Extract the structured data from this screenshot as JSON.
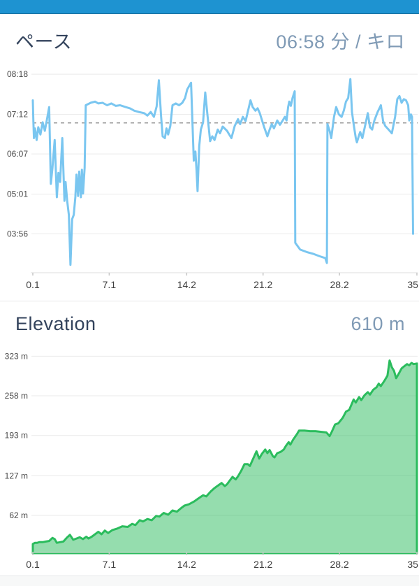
{
  "topbar": {
    "color": "#1E93D1"
  },
  "theme": {
    "title_color": "#33435C",
    "value_color": "#7F9AB5",
    "grid_color": "#EAEAEA",
    "axis_line_color": "#DCDCDC",
    "tick_mark_color": "#C6C6C6",
    "x_label_color": "#3E3E3E",
    "y_label_color": "#4A4A4A"
  },
  "pace_header": {
    "title": "ペース",
    "value": "06:58 分 / キロ"
  },
  "elevation_header": {
    "title": "Elevation",
    "value": "610 m"
  },
  "chart_data": [
    {
      "id": "pace",
      "type": "line",
      "title": "ペース",
      "value_label": "06:58 分 / キロ",
      "line_color": "#7AC6F0",
      "line_width": 3,
      "grid": true,
      "average_line": {
        "seconds": 418,
        "label": "06:58",
        "color": "#9B9B9B",
        "dash": "5,5"
      },
      "x": {
        "domain": [
          0.1,
          35.3
        ],
        "ticks": [
          0.1,
          7.1,
          14.2,
          21.2,
          28.2,
          35.3
        ],
        "tick_labels": [
          "0.1",
          "7.1",
          "14.2",
          "21.2",
          "28.2",
          "35.3"
        ]
      },
      "y": {
        "domain": [
          172,
          505
        ],
        "unit": "min:sec per km",
        "ticks": [
          {
            "label": "08:18",
            "value": 498
          },
          {
            "label": "07:12",
            "value": 432
          },
          {
            "label": "06:07",
            "value": 367
          },
          {
            "label": "05:01",
            "value": 301
          },
          {
            "label": "03:56",
            "value": 236
          }
        ]
      },
      "points": [
        [
          0.1,
          455
        ],
        [
          0.15,
          420
        ],
        [
          0.2,
          393
        ],
        [
          0.3,
          409
        ],
        [
          0.45,
          390
        ],
        [
          0.6,
          411
        ],
        [
          0.8,
          399
        ],
        [
          1.0,
          419
        ],
        [
          1.2,
          405
        ],
        [
          1.4,
          424
        ],
        [
          1.6,
          444
        ],
        [
          1.75,
          318
        ],
        [
          1.9,
          344
        ],
        [
          2.1,
          390
        ],
        [
          2.3,
          296
        ],
        [
          2.45,
          336
        ],
        [
          2.6,
          321
        ],
        [
          2.8,
          393
        ],
        [
          3.0,
          290
        ],
        [
          3.1,
          321
        ],
        [
          3.25,
          290
        ],
        [
          3.4,
          267
        ],
        [
          3.55,
          185
        ],
        [
          3.7,
          260
        ],
        [
          3.85,
          267
        ],
        [
          4.0,
          296
        ],
        [
          4.1,
          333
        ],
        [
          4.25,
          298
        ],
        [
          4.35,
          338
        ],
        [
          4.5,
          296
        ],
        [
          4.6,
          341
        ],
        [
          4.7,
          302
        ],
        [
          4.85,
          344
        ],
        [
          4.95,
          447
        ],
        [
          5.4,
          451
        ],
        [
          5.8,
          453
        ],
        [
          6.1,
          450
        ],
        [
          6.5,
          451
        ],
        [
          6.9,
          447
        ],
        [
          7.3,
          450
        ],
        [
          7.7,
          446
        ],
        [
          8.1,
          447
        ],
        [
          8.6,
          444
        ],
        [
          9.0,
          442
        ],
        [
          9.4,
          438
        ],
        [
          9.8,
          436
        ],
        [
          10.3,
          434
        ],
        [
          10.6,
          430
        ],
        [
          10.9,
          436
        ],
        [
          11.2,
          428
        ],
        [
          11.45,
          445
        ],
        [
          11.65,
          488
        ],
        [
          11.85,
          430
        ],
        [
          12.0,
          396
        ],
        [
          12.2,
          393
        ],
        [
          12.35,
          409
        ],
        [
          12.5,
          399
        ],
        [
          12.7,
          413
        ],
        [
          12.9,
          447
        ],
        [
          13.2,
          450
        ],
        [
          13.5,
          447
        ],
        [
          13.8,
          451
        ],
        [
          14.05,
          459
        ],
        [
          14.25,
          473
        ],
        [
          14.6,
          484
        ],
        [
          14.85,
          356
        ],
        [
          15.0,
          371
        ],
        [
          15.1,
          341
        ],
        [
          15.2,
          306
        ],
        [
          15.35,
          380
        ],
        [
          15.5,
          407
        ],
        [
          15.7,
          419
        ],
        [
          15.9,
          468
        ],
        [
          16.1,
          432
        ],
        [
          16.35,
          388
        ],
        [
          16.55,
          396
        ],
        [
          16.75,
          390
        ],
        [
          17.05,
          407
        ],
        [
          17.25,
          401
        ],
        [
          17.5,
          412
        ],
        [
          17.9,
          405
        ],
        [
          18.3,
          393
        ],
        [
          18.6,
          413
        ],
        [
          18.9,
          424
        ],
        [
          19.1,
          416
        ],
        [
          19.35,
          428
        ],
        [
          19.6,
          421
        ],
        [
          20.05,
          455
        ],
        [
          20.25,
          444
        ],
        [
          20.5,
          438
        ],
        [
          20.7,
          442
        ],
        [
          20.9,
          434
        ],
        [
          21.3,
          411
        ],
        [
          21.6,
          396
        ],
        [
          21.8,
          407
        ],
        [
          22.0,
          416
        ],
        [
          22.2,
          409
        ],
        [
          22.5,
          422
        ],
        [
          22.75,
          415
        ],
        [
          23.0,
          422
        ],
        [
          23.2,
          428
        ],
        [
          23.35,
          422
        ],
        [
          23.5,
          444
        ],
        [
          23.6,
          453
        ],
        [
          23.75,
          446
        ],
        [
          23.9,
          459
        ],
        [
          24.1,
          470
        ],
        [
          24.15,
          221
        ],
        [
          24.6,
          210
        ],
        [
          25.2,
          206
        ],
        [
          25.8,
          203
        ],
        [
          26.4,
          199
        ],
        [
          26.9,
          196
        ],
        [
          27.05,
          188
        ],
        [
          27.1,
          416
        ],
        [
          27.3,
          405
        ],
        [
          27.45,
          393
        ],
        [
          27.7,
          428
        ],
        [
          27.9,
          444
        ],
        [
          28.15,
          432
        ],
        [
          28.4,
          428
        ],
        [
          28.6,
          438
        ],
        [
          28.8,
          453
        ],
        [
          29.0,
          459
        ],
        [
          29.2,
          490
        ],
        [
          29.35,
          436
        ],
        [
          29.5,
          416
        ],
        [
          29.7,
          393
        ],
        [
          29.8,
          386
        ],
        [
          30.0,
          398
        ],
        [
          30.1,
          403
        ],
        [
          30.3,
          393
        ],
        [
          30.5,
          409
        ],
        [
          30.8,
          434
        ],
        [
          31.0,
          411
        ],
        [
          31.2,
          407
        ],
        [
          31.4,
          422
        ],
        [
          31.7,
          436
        ],
        [
          32.0,
          447
        ],
        [
          32.2,
          421
        ],
        [
          32.4,
          413
        ],
        [
          32.7,
          407
        ],
        [
          33.0,
          401
        ],
        [
          33.3,
          428
        ],
        [
          33.5,
          457
        ],
        [
          33.7,
          462
        ],
        [
          33.9,
          451
        ],
        [
          34.1,
          457
        ],
        [
          34.3,
          455
        ],
        [
          34.5,
          447
        ],
        [
          34.6,
          422
        ],
        [
          34.75,
          432
        ],
        [
          34.85,
          428
        ],
        [
          34.95,
          236
        ]
      ]
    },
    {
      "id": "elevation",
      "type": "area",
      "title": "Elevation",
      "value_label": "610 m",
      "line_color": "#2BBC5D",
      "line_width": 3,
      "fill_color": "rgba(44,188,93,0.5)",
      "grid": true,
      "x": {
        "domain": [
          0.1,
          35.3
        ],
        "ticks": [
          0.1,
          7.1,
          14.2,
          21.2,
          28.2,
          35.3
        ],
        "tick_labels": [
          "0.1",
          "7.1",
          "14.2",
          "21.2",
          "28.2",
          "35.3"
        ]
      },
      "y": {
        "domain": [
          0,
          328
        ],
        "unit": "m",
        "ticks": [
          {
            "label": "323 m",
            "value": 323
          },
          {
            "label": "258 m",
            "value": 258
          },
          {
            "label": "193 m",
            "value": 193
          },
          {
            "label": "127 m",
            "value": 127
          },
          {
            "label": "62 m",
            "value": 62
          }
        ]
      },
      "points": [
        [
          0.1,
          15
        ],
        [
          0.3,
          17
        ],
        [
          0.5,
          17
        ],
        [
          0.7,
          18
        ],
        [
          1.0,
          18
        ],
        [
          1.3,
          19
        ],
        [
          1.6,
          20
        ],
        [
          1.9,
          25
        ],
        [
          2.1,
          23
        ],
        [
          2.3,
          17
        ],
        [
          2.6,
          18
        ],
        [
          2.9,
          19
        ],
        [
          3.2,
          25
        ],
        [
          3.5,
          30
        ],
        [
          3.8,
          22
        ],
        [
          4.1,
          24
        ],
        [
          4.4,
          26
        ],
        [
          4.7,
          23
        ],
        [
          5.0,
          27
        ],
        [
          5.2,
          24
        ],
        [
          5.5,
          27
        ],
        [
          5.8,
          31
        ],
        [
          6.1,
          35
        ],
        [
          6.4,
          31
        ],
        [
          6.7,
          37
        ],
        [
          7.0,
          33
        ],
        [
          7.4,
          38
        ],
        [
          7.8,
          40
        ],
        [
          8.3,
          44
        ],
        [
          8.8,
          43
        ],
        [
          9.2,
          48
        ],
        [
          9.5,
          46
        ],
        [
          9.9,
          54
        ],
        [
          10.2,
          52
        ],
        [
          10.6,
          56
        ],
        [
          11.0,
          54
        ],
        [
          11.4,
          61
        ],
        [
          11.7,
          60
        ],
        [
          12.1,
          66
        ],
        [
          12.5,
          63
        ],
        [
          12.9,
          70
        ],
        [
          13.3,
          68
        ],
        [
          13.7,
          74
        ],
        [
          14.0,
          78
        ],
        [
          14.4,
          80
        ],
        [
          14.9,
          85
        ],
        [
          15.3,
          90
        ],
        [
          15.7,
          95
        ],
        [
          16.0,
          93
        ],
        [
          16.4,
          101
        ],
        [
          16.7,
          106
        ],
        [
          17.0,
          110
        ],
        [
          17.4,
          115
        ],
        [
          17.7,
          110
        ],
        [
          17.9,
          113
        ],
        [
          18.1,
          118
        ],
        [
          18.4,
          125
        ],
        [
          18.7,
          121
        ],
        [
          18.9,
          126
        ],
        [
          19.2,
          135
        ],
        [
          19.5,
          146
        ],
        [
          19.8,
          146
        ],
        [
          20.0,
          143
        ],
        [
          20.3,
          155
        ],
        [
          20.6,
          167
        ],
        [
          20.85,
          155
        ],
        [
          21.1,
          163
        ],
        [
          21.4,
          170
        ],
        [
          21.6,
          164
        ],
        [
          21.8,
          169
        ],
        [
          22.1,
          159
        ],
        [
          22.25,
          157
        ],
        [
          22.5,
          164
        ],
        [
          22.8,
          166
        ],
        [
          23.1,
          170
        ],
        [
          23.3,
          176
        ],
        [
          23.55,
          182
        ],
        [
          23.7,
          178
        ],
        [
          23.95,
          186
        ],
        [
          24.3,
          195
        ],
        [
          24.5,
          201
        ],
        [
          25.0,
          201
        ],
        [
          25.5,
          200
        ],
        [
          26.0,
          200
        ],
        [
          26.5,
          199
        ],
        [
          27.0,
          198
        ],
        [
          27.3,
          192
        ],
        [
          27.5,
          199
        ],
        [
          27.8,
          211
        ],
        [
          28.1,
          213
        ],
        [
          28.5,
          222
        ],
        [
          28.8,
          232
        ],
        [
          29.1,
          235
        ],
        [
          29.5,
          252
        ],
        [
          29.7,
          247
        ],
        [
          30.0,
          256
        ],
        [
          30.2,
          251
        ],
        [
          30.5,
          259
        ],
        [
          30.8,
          264
        ],
        [
          31.0,
          260
        ],
        [
          31.3,
          268
        ],
        [
          31.6,
          272
        ],
        [
          31.8,
          278
        ],
        [
          32.0,
          274
        ],
        [
          32.3,
          282
        ],
        [
          32.6,
          291
        ],
        [
          32.8,
          316
        ],
        [
          33.0,
          305
        ],
        [
          33.2,
          299
        ],
        [
          33.4,
          287
        ],
        [
          33.6,
          293
        ],
        [
          33.9,
          303
        ],
        [
          34.1,
          306
        ],
        [
          34.4,
          310
        ],
        [
          34.6,
          308
        ],
        [
          34.8,
          312
        ],
        [
          35.0,
          310
        ],
        [
          35.3,
          311
        ]
      ]
    }
  ]
}
